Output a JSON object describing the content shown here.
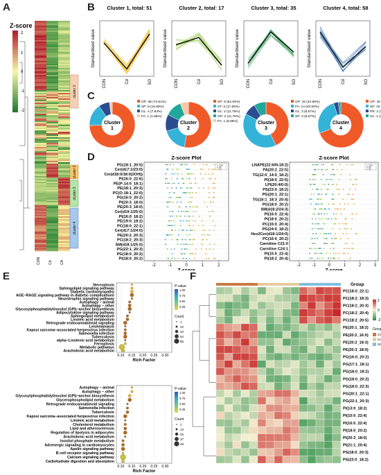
{
  "panels": {
    "A": {
      "letter": "A",
      "zscore_title": "Z-score",
      "scale_ticks": [
        "2",
        "1",
        "0",
        "-1",
        "-2"
      ],
      "groups": [
        "CON",
        "Cd",
        "CA"
      ],
      "clusters": [
        "cluster 1",
        "cluster 2",
        "cluster 3",
        "cluster 4"
      ]
    },
    "B": {
      "letter": "B",
      "ylabel": "Standardised value",
      "xticks": [
        "CON",
        "Cd",
        "SO"
      ],
      "titles": [
        "Cluster 1, total: 51",
        "Cluster 2, total: 17",
        "Cluster 3, total: 35",
        "Cluster 4, total: 58"
      ],
      "colors": [
        "#f2b400",
        "#8ec63f",
        "#3aa55a",
        "#2f6db3"
      ]
    },
    "C": {
      "letter": "C",
      "donuts": [
        {
          "center": "Cluster 1",
          "legend": [
            "GP: 38 (74.51%)",
            "SP: 8 (15.69%)",
            "GL: 4 (7.84%)",
            "FA: 1 (1.96%)"
          ],
          "values": [
            74.51,
            15.69,
            7.84,
            1.96
          ],
          "colors": [
            "#f05a28",
            "#34b3d8",
            "#2a4d8f",
            "#f7c9a8"
          ]
        },
        {
          "center": "Cluster 2",
          "legend": [
            "SP: 9 (52.94%)",
            "ST: 3 (17.65%)",
            "GL: 2 (11.76%)",
            "GP: 2 (11.76%)",
            "FA: 1 (5.88%)"
          ],
          "values": [
            52.94,
            17.65,
            11.76,
            11.76,
            5.88
          ],
          "colors": [
            "#f05a28",
            "#34b3d8",
            "#2a4d8f",
            "#1fa89b",
            "#f7c9a8"
          ]
        },
        {
          "center": "Cluster 3",
          "legend": [
            "GP: 15 (42.86%)",
            "FA: 14 (40.00%)",
            "GL: 3 (8.57%)",
            "SP: 3 (8.57%)"
          ],
          "values": [
            42.86,
            40.0,
            8.57,
            8.57
          ],
          "colors": [
            "#f05a28",
            "#34b3d8",
            "#2a4d8f",
            "#1fa89b"
          ]
        },
        {
          "center": "Cluster 4",
          "legend": [
            "GP: 40 (68.97%)",
            "SP: 15 (25.86%)",
            "PR: 2 (3.45%)",
            "GL: 1 (1.72%)"
          ],
          "values": [
            68.97,
            25.86,
            3.45,
            1.72
          ],
          "colors": [
            "#f05a28",
            "#34b3d8",
            "#2a4d8f",
            "#1fa89b"
          ]
        }
      ]
    },
    "D": {
      "letter": "D",
      "left": {
        "title": "Z-score Plot",
        "xlabel": "Z-score",
        "xticks": [
          "-2",
          "-1",
          "0",
          "1",
          "2"
        ],
        "xlim": [
          -2.6,
          2.6
        ],
        "rows": [
          "PG(18:1_20:5)",
          "Cer(d17:1/23:0)",
          "Cer(d18:0/18:0(2OH))",
          "PI(16:0_22:6)",
          "PE(P-14:0_18:1)",
          "PE(18:1_20:3)",
          "PC(O-18:1_22:0)",
          "PG(16:0_20:2)",
          "PI(20:3_18:0)",
          "PE(20:3_18:0)",
          "Cer(d19:1/25:0)",
          "PI(16:0_18:2)",
          "PE(19:0_18:2)",
          "PC(18:0_22:1)",
          "Cer(d17:1/24:0)",
          "PE(20:2_20:3)",
          "PC(18:2_20:3)",
          "SM(d18:1/25:0)",
          "PG(22:1_20:3)",
          "PG(18:0_20:2)",
          "PI(18:0_20:2)"
        ]
      },
      "right": {
        "title": "Z-score Plot",
        "xlabel": "Z-score",
        "xticks": [
          "-2",
          "-1",
          "0",
          "1",
          "2",
          "3"
        ],
        "xlim": [
          -2.6,
          3.2
        ],
        "rows": [
          "LNAPE(22:6/N-18:2)",
          "PA(20:2_22:5)",
          "TG(12:0_14:0_18:2)",
          "PI(18:0_22:5)",
          "LPI(20:4/0:0)",
          "PS(23:0_18:2)",
          "PG(20:1_22:1)",
          "TG(16:1_18:3_20:4)",
          "PG(18:0_20:2)",
          "SM(d18:2/24:3)",
          "PI(16:0_22:4)",
          "PI(18:0_20:2)",
          "PC(15:0_20:4)",
          "PG(24:0_18:2)",
          "Hex2Cer(d18:1/24:0)",
          "PC(16:0_20:2)",
          "Carnitine C21:0",
          "Carnitine C24:1",
          "PI(15:0_22:4)",
          "PI(18:2_20:4)"
        ]
      },
      "legend": [
        "CON",
        "Cd",
        "SO"
      ]
    },
    "E": {
      "letter": "E",
      "xlabel": "Rich Factor",
      "top": {
        "xticks": [
          "0.10",
          "0.15",
          "0.20",
          "0.25",
          "0.30"
        ],
        "xlim": [
          0.08,
          0.33
        ],
        "pathways": [
          {
            "name": "Necroptosis",
            "rich": 0.15
          },
          {
            "name": "Sphingolipid signaling pathway",
            "rich": 0.15
          },
          {
            "name": "Diabetic cardiomyopathy",
            "rich": 0.15
          },
          {
            "name": "AGE−RAGE signaling pathway in diabetic complications",
            "rich": 0.15
          },
          {
            "name": "Neurotrophin signaling pathway",
            "rich": 0.15
          },
          {
            "name": "Autophagy − animal",
            "rich": 0.14
          },
          {
            "name": "Autophagy − other",
            "rich": 0.14
          },
          {
            "name": "Glycosylphosphatidylinositol (GPI)−anchor biosynthesis",
            "rich": 0.14
          },
          {
            "name": "Adipocytokine signaling pathway",
            "rich": 0.14
          },
          {
            "name": "Sphingolipid metabolism",
            "rich": 0.13
          },
          {
            "name": "Linoleic acid metabolism",
            "rich": 0.13
          },
          {
            "name": "Retrograde endocannabinoid signaling",
            "rich": 0.12
          },
          {
            "name": "Leishmaniasis",
            "rich": 0.12
          },
          {
            "name": "Kaposi sarcoma−associated herpesvirus infection",
            "rich": 0.12
          },
          {
            "name": "Salmonella infection",
            "rich": 0.12
          },
          {
            "name": "Tuberculosis",
            "rich": 0.12
          },
          {
            "name": "alpha−Linolenic acid metabolism",
            "rich": 0.12
          },
          {
            "name": "Ferroptosis",
            "rich": 0.12
          },
          {
            "name": "Metabolic pathways",
            "rich": 0.105
          },
          {
            "name": "Arachidonic acid metabolism",
            "rich": 0.11
          }
        ],
        "pvalue_title": "P-value",
        "pvalue_ticks": [
          "1.00",
          "0.75",
          "0.50",
          "0.25"
        ],
        "count_title": "Count",
        "count_ticks": [
          "1",
          "22",
          "43",
          "64",
          "85"
        ]
      },
      "bottom": {
        "xticks": [
          "0.10",
          "0.15",
          "0.20",
          "0.25",
          "0.30"
        ],
        "xlim": [
          0.08,
          0.33
        ],
        "pathways": [
          {
            "name": "Autophagy − animal",
            "rich": 0.15
          },
          {
            "name": "Autophagy − other",
            "rich": 0.15
          },
          {
            "name": "Glycosylphosphatidylinositol (GPI)−anchor biosynthesis",
            "rich": 0.14
          },
          {
            "name": "Glycerophospholipid metabolism",
            "rich": 0.14
          },
          {
            "name": "Retrograde endocannabinoid signaling",
            "rich": 0.13
          },
          {
            "name": "Salmonella infection",
            "rich": 0.13
          },
          {
            "name": "Tuberculosis",
            "rich": 0.13
          },
          {
            "name": "Kaposi sarcoma−associated herpesvirus infection",
            "rich": 0.12
          },
          {
            "name": "Linoleic acid metabolism",
            "rich": 0.12
          },
          {
            "name": "Cholesterol metabolism",
            "rich": 0.12
          },
          {
            "name": "Lipid and atherosclerosis",
            "rich": 0.12
          },
          {
            "name": "Regulation of lipolysis in adipocytes",
            "rich": 0.12
          },
          {
            "name": "Arachidonic acid metabolism",
            "rich": 0.12
          },
          {
            "name": "Inositol phosphate metabolism",
            "rich": 0.11
          },
          {
            "name": "Adrenergic signaling in cardiomyocytes",
            "rich": 0.11
          },
          {
            "name": "Apelin signaling pathway",
            "rich": 0.11
          },
          {
            "name": "B cell receptor signaling pathway",
            "rich": 0.11
          },
          {
            "name": "Calcium signaling pathway",
            "rich": 0.11
          },
          {
            "name": "Carbohydrate digestion and absorption",
            "rich": 0.11
          }
        ],
        "pvalue_title": "P-value",
        "pvalue_ticks": [
          "1.00",
          "0.75",
          "0.50",
          "0.25"
        ],
        "count_title": "Count",
        "count_ticks": [
          "1",
          "13",
          "25",
          "37",
          "49"
        ]
      }
    },
    "F": {
      "letter": "F",
      "group_title": "Group",
      "legend_ticks": [
        "2",
        "0",
        "-2"
      ],
      "group_legend_title": "Group",
      "group_legend": [
        "CON",
        "Cd",
        "SO"
      ],
      "rows": [
        "PC(18:0_22:1)",
        "PC(18:2_18:3)",
        "PC(18:2_20:3)",
        "PC(18:2_20:4)",
        "PC(18:2_20:5)",
        "PE(20:1_18:2)",
        "PE(20:2_16:0)",
        "PE(20:2_18:3)",
        "PE(20:3_18:0)",
        "PG(16:0_20:2)",
        "PG(17:1_18:1)",
        "PG(18:0_18:2)",
        "PG(18:0_20:2)",
        "PG(18:0_22:3)",
        "PG(20:1_22:1)",
        "PG(22:1_20:3)",
        "PI(13:0_18:2)",
        "PI(15:0_22:4)",
        "PI(16:0_22:4)",
        "PI(18:0_20:2)",
        "PI(20:3_18:0)",
        "PI(21:1_20:4)",
        "PS(18:0_20:3)",
        "PS(23:0_18:2)"
      ]
    }
  }
}
